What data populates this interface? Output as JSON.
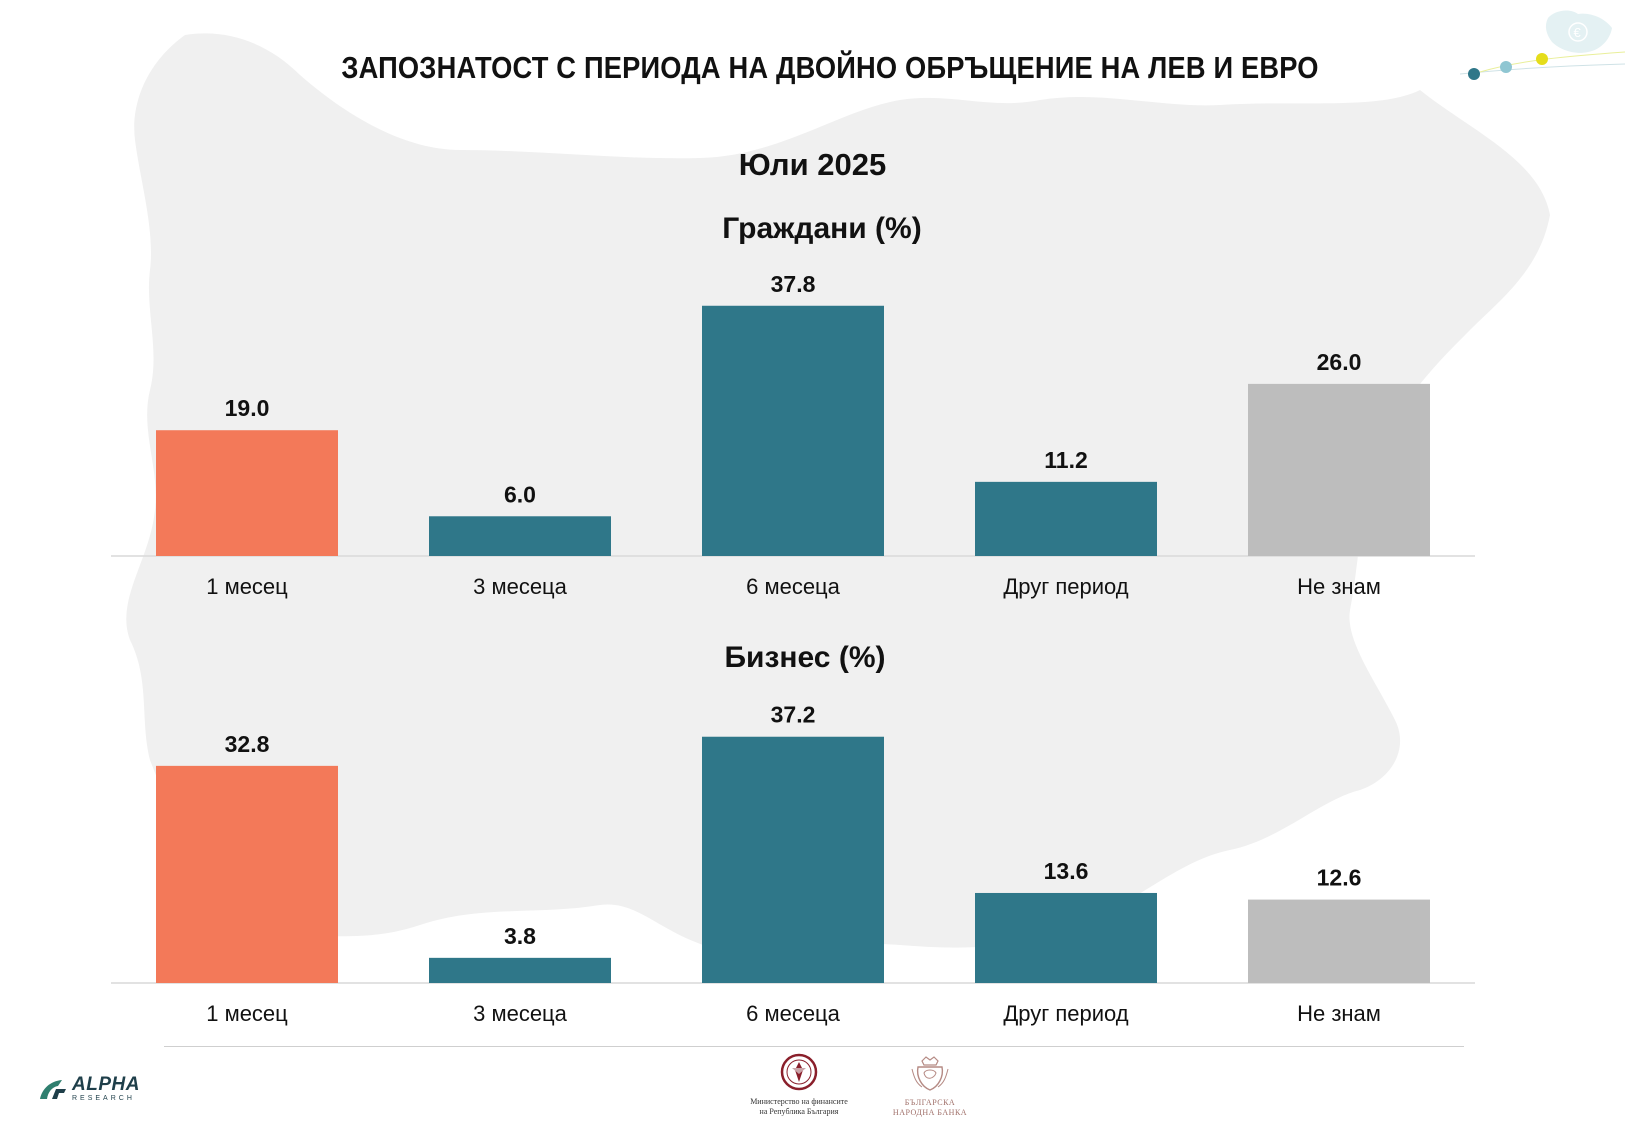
{
  "page": {
    "title": "ЗАПОЗНАТОСТ С ПЕРИОДА НА ДВОЙНО ОБРЪЩЕНИЕ НА ЛЕВ И ЕВРО",
    "subtitle": "Юли 2025"
  },
  "colors": {
    "first_category": "#f37959",
    "middle_categories": "#2f7789",
    "dont_know": "#bdbdbd",
    "map_background": "#f0f0f0"
  },
  "chart_data": [
    {
      "type": "bar",
      "title": "Граждани (%)",
      "categories": [
        "1 месец",
        "3 месеца",
        "6 месеца",
        "Друг период",
        "Не знам"
      ],
      "values": [
        19.0,
        6.0,
        37.8,
        11.2,
        26.0
      ],
      "value_labels": [
        "19.0",
        "6.0",
        "37.8",
        "11.2",
        "26.0"
      ],
      "grid": false,
      "legend": "none"
    },
    {
      "type": "bar",
      "title": "Бизнес (%)",
      "categories": [
        "1 месец",
        "3 месеца",
        "6 месеца",
        "Друг период",
        "Не знам"
      ],
      "values": [
        32.8,
        3.8,
        37.2,
        13.6,
        12.6
      ],
      "value_labels": [
        "32.8",
        "3.8",
        "37.2",
        "13.6",
        "12.6"
      ],
      "grid": false,
      "legend": "none"
    }
  ],
  "footer": {
    "alpha_logo_text": "ALPHA",
    "alpha_logo_subtext": "RESEARCH",
    "mof_logo_line1": "Министерство на финансите",
    "mof_logo_line2": "на Република България",
    "bnb_logo_line1": "БЪЛГАРСКА",
    "bnb_logo_line2": "НАРОДНА БАНКА"
  }
}
